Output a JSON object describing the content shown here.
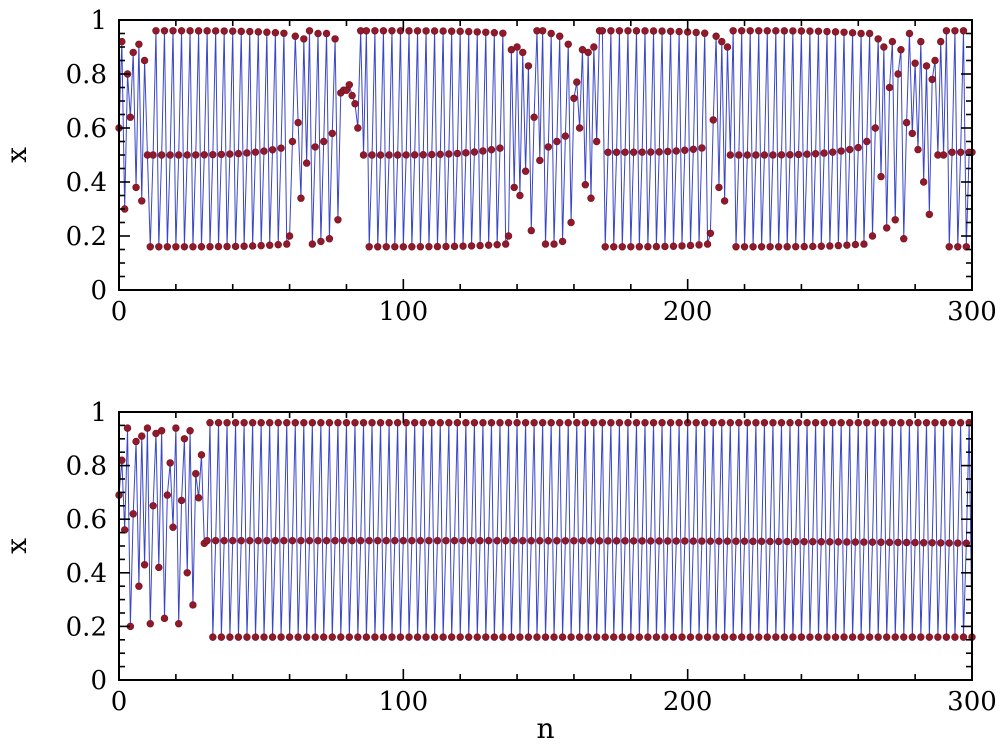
{
  "chart_data": [
    {
      "type": "line",
      "xlabel": "",
      "ylabel": "x",
      "xlim": [
        0,
        300
      ],
      "ylim": [
        0,
        1
      ],
      "xticks": [
        0,
        100,
        200,
        300
      ],
      "xtick_labels": [
        "0",
        "100",
        "200",
        "300"
      ],
      "yticks": [
        0,
        0.2,
        0.4,
        0.6,
        0.8,
        1
      ],
      "ytick_labels": [
        "0",
        "0.2",
        "0.4",
        "0.6",
        "0.8",
        "1"
      ],
      "grid": false,
      "marker_color": "#8e1a2a",
      "line_color": "#3a46c8",
      "segments": [
        {
          "n_start": 0,
          "n_end": 11,
          "mode": "chaotic",
          "values": [
            0.6,
            0.92,
            0.3,
            0.8,
            0.64,
            0.88,
            0.38,
            0.91,
            0.33,
            0.85,
            0.5
          ]
        },
        {
          "n_start": 11,
          "n_end": 60,
          "mode": "cycle3",
          "phase": 0,
          "lo": [
            0.16,
            0.17
          ],
          "mid": [
            0.5,
            0.53
          ],
          "hi": [
            0.96,
            0.95
          ]
        },
        {
          "n_start": 60,
          "n_end": 86,
          "mode": "chaotic",
          "values": [
            0.2,
            0.55,
            0.94,
            0.62,
            0.34,
            0.93,
            0.47,
            0.96,
            0.17,
            0.53,
            0.95,
            0.18,
            0.55,
            0.95,
            0.19,
            0.58,
            0.93,
            0.26,
            0.73,
            0.74,
            0.74,
            0.76,
            0.72,
            0.69,
            0.6,
            0.96
          ]
        },
        {
          "n_start": 86,
          "n_end": 137,
          "mode": "cycle3",
          "phase": 1,
          "lo": [
            0.16,
            0.17
          ],
          "mid": [
            0.5,
            0.53
          ],
          "hi": [
            0.96,
            0.95
          ]
        },
        {
          "n_start": 137,
          "n_end": 170,
          "mode": "chaotic",
          "values": [
            0.2,
            0.89,
            0.38,
            0.9,
            0.35,
            0.88,
            0.44,
            0.83,
            0.22,
            0.64,
            0.96,
            0.48,
            0.96,
            0.17,
            0.53,
            0.95,
            0.17,
            0.55,
            0.94,
            0.18,
            0.57,
            0.91,
            0.25,
            0.71,
            0.77,
            0.6,
            0.89,
            0.39,
            0.88,
            0.34,
            0.9,
            0.55,
            0.96
          ]
        },
        {
          "n_start": 170,
          "n_end": 208,
          "mode": "cycle3",
          "phase": 2,
          "lo": [
            0.16,
            0.17
          ],
          "mid": [
            0.51,
            0.53
          ],
          "hi": [
            0.96,
            0.95
          ]
        },
        {
          "n_start": 208,
          "n_end": 218,
          "mode": "chaotic",
          "values": [
            0.21,
            0.63,
            0.94,
            0.38,
            0.92,
            0.33,
            0.9,
            0.5,
            0.96,
            0.16
          ]
        },
        {
          "n_start": 218,
          "n_end": 262,
          "mode": "cycle3",
          "phase": 1,
          "lo": [
            0.16,
            0.17
          ],
          "mid": [
            0.5,
            0.53
          ],
          "hi": [
            0.96,
            0.95
          ]
        },
        {
          "n_start": 262,
          "n_end": 301,
          "mode": "chaotic",
          "values": [
            0.17,
            0.55,
            0.95,
            0.2,
            0.6,
            0.93,
            0.42,
            0.9,
            0.23,
            0.75,
            0.92,
            0.26,
            0.8,
            0.89,
            0.19,
            0.62,
            0.95,
            0.58,
            0.84,
            0.52,
            0.92,
            0.4,
            0.83,
            0.28,
            0.78,
            0.85,
            0.5,
            0.92,
            0.5,
            0.96,
            0.16,
            0.51,
            0.96,
            0.16,
            0.51,
            0.96,
            0.16,
            0.51,
            0.51
          ]
        }
      ]
    },
    {
      "type": "line",
      "xlabel": "n",
      "ylabel": "x",
      "xlim": [
        0,
        300
      ],
      "ylim": [
        0,
        1
      ],
      "xticks": [
        0,
        100,
        200,
        300
      ],
      "xtick_labels": [
        "0",
        "100",
        "200",
        "300"
      ],
      "yticks": [
        0,
        0.2,
        0.4,
        0.6,
        0.8,
        1
      ],
      "ytick_labels": [
        "0",
        "0.2",
        "0.4",
        "0.6",
        "0.8",
        "1"
      ],
      "grid": false,
      "marker_color": "#8e1a2a",
      "line_color": "#3a46c8",
      "segments": [
        {
          "n_start": 0,
          "n_end": 31,
          "mode": "chaotic",
          "values": [
            0.69,
            0.82,
            0.56,
            0.94,
            0.2,
            0.62,
            0.89,
            0.35,
            0.91,
            0.43,
            0.94,
            0.21,
            0.65,
            0.92,
            0.42,
            0.93,
            0.23,
            0.69,
            0.81,
            0.57,
            0.94,
            0.21,
            0.67,
            0.9,
            0.4,
            0.93,
            0.28,
            0.77,
            0.68,
            0.84,
            0.51
          ]
        },
        {
          "n_start": 31,
          "n_end": 301,
          "mode": "cycle3",
          "phase": 1,
          "lo": [
            0.16,
            0.16
          ],
          "mid": [
            0.52,
            0.51
          ],
          "hi": [
            0.96,
            0.96
          ]
        }
      ]
    }
  ]
}
